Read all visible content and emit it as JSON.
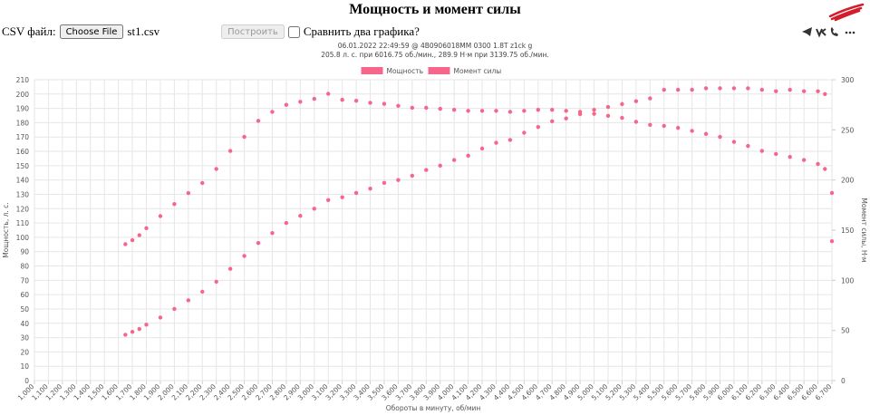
{
  "page": {
    "csv_label": "CSV файл:",
    "file_button": "Choose File",
    "file_name": "st1.csv",
    "build_button": "Построить",
    "compare_label": "Сравнить два графика?"
  },
  "chart_data": {
    "type": "scatter",
    "title": "Мощность и момент силы",
    "subtitle": [
      "06.01.2022 22:49:59 @ 4B0906018MM 0300 1.8T z1ck g",
      "205.8 л. с. при 6016.75 об./мин., 289.9 Н·м при 3139.75 об./мин."
    ],
    "x_label": "Обороты в минуту, об/мин",
    "y_label": "Мощность, л. с.",
    "y2_label": "Момент силы, Н·м",
    "legend": "top",
    "grid": true,
    "x": [
      1650,
      1700,
      1750,
      1800,
      1900,
      2000,
      2100,
      2200,
      2300,
      2400,
      2500,
      2600,
      2700,
      2800,
      2900,
      3000,
      3100,
      3200,
      3300,
      3400,
      3500,
      3600,
      3700,
      3800,
      3900,
      4000,
      4100,
      4200,
      4300,
      4400,
      4500,
      4600,
      4700,
      4800,
      4900,
      5000,
      5100,
      5200,
      5300,
      5400,
      5500,
      5600,
      5700,
      5800,
      5900,
      6000,
      6100,
      6200,
      6300,
      6400,
      6500,
      6600,
      6650,
      6700
    ],
    "series": [
      {
        "name": "Мощность",
        "color": "#f5668a",
        "axis": "y",
        "values": [
          32,
          34,
          36,
          39,
          44,
          50,
          56,
          62,
          69,
          78,
          87,
          96,
          103,
          110,
          115,
          120,
          126,
          128,
          131,
          134,
          138,
          140,
          143,
          147,
          150,
          154,
          157,
          162,
          166,
          168,
          173,
          177,
          181,
          183,
          186,
          189,
          191,
          193,
          195,
          197,
          203,
          203,
          203,
          204,
          204,
          204,
          204,
          203,
          202,
          203,
          202,
          202,
          200,
          131
        ]
      },
      {
        "name": "Момент силы",
        "color": "#f5668a",
        "axis": "y2",
        "values": [
          136,
          140,
          145,
          152,
          164,
          176,
          187,
          197,
          211,
          229,
          243,
          259,
          268,
          275,
          278,
          281,
          286,
          280,
          279,
          277,
          276,
          274,
          272,
          272,
          271,
          270,
          269,
          269,
          269,
          268,
          269,
          270,
          270,
          269,
          268,
          266,
          264,
          262,
          258,
          255,
          254,
          252,
          249,
          246,
          243,
          238,
          234,
          229,
          226,
          223,
          220,
          216,
          211,
          139
        ]
      }
    ],
    "xlim": [
      1000,
      6700
    ],
    "xticks": [
      {
        "value": 1000,
        "label": "1,000"
      },
      {
        "value": 1100,
        "label": "1,100"
      },
      {
        "value": 1200,
        "label": "1,200"
      },
      {
        "value": 1300,
        "label": "1,300"
      },
      {
        "value": 1400,
        "label": "1,400"
      },
      {
        "value": 1500,
        "label": "1,500"
      },
      {
        "value": 1600,
        "label": "1,600"
      },
      {
        "value": 1700,
        "label": "1,700"
      },
      {
        "value": 1800,
        "label": "1,800"
      },
      {
        "value": 1900,
        "label": "1,900"
      },
      {
        "value": 2000,
        "label": "2,000"
      },
      {
        "value": 2100,
        "label": "2,100"
      },
      {
        "value": 2200,
        "label": "2,200"
      },
      {
        "value": 2300,
        "label": "2,300"
      },
      {
        "value": 2400,
        "label": "2,400"
      },
      {
        "value": 2500,
        "label": "2,500"
      },
      {
        "value": 2600,
        "label": "2,600"
      },
      {
        "value": 2700,
        "label": "2,700"
      },
      {
        "value": 2800,
        "label": "2,800"
      },
      {
        "value": 2900,
        "label": "2,900"
      },
      {
        "value": 3000,
        "label": "3,000"
      },
      {
        "value": 3100,
        "label": "3,100"
      },
      {
        "value": 3200,
        "label": "3,200"
      },
      {
        "value": 3300,
        "label": "3,300"
      },
      {
        "value": 3400,
        "label": "3,400"
      },
      {
        "value": 3500,
        "label": "3,500"
      },
      {
        "value": 3600,
        "label": "3,600"
      },
      {
        "value": 3700,
        "label": "3,700"
      },
      {
        "value": 3800,
        "label": "3,800"
      },
      {
        "value": 3900,
        "label": "3,900"
      },
      {
        "value": 4000,
        "label": "4,000"
      },
      {
        "value": 4100,
        "label": "4,100"
      },
      {
        "value": 4200,
        "label": "4,200"
      },
      {
        "value": 4300,
        "label": "4,300"
      },
      {
        "value": 4400,
        "label": "4,400"
      },
      {
        "value": 4500,
        "label": "4,500"
      },
      {
        "value": 4600,
        "label": "4,600"
      },
      {
        "value": 4700,
        "label": "4,700"
      },
      {
        "value": 4800,
        "label": "4,800"
      },
      {
        "value": 4900,
        "label": "4,900"
      },
      {
        "value": 5000,
        "label": "5,000"
      },
      {
        "value": 5100,
        "label": "5,100"
      },
      {
        "value": 5200,
        "label": "5,200"
      },
      {
        "value": 5300,
        "label": "5,300"
      },
      {
        "value": 5400,
        "label": "5,400"
      },
      {
        "value": 5500,
        "label": "5,500"
      },
      {
        "value": 5600,
        "label": "5,600"
      },
      {
        "value": 5700,
        "label": "5,700"
      },
      {
        "value": 5800,
        "label": "5,800"
      },
      {
        "value": 5900,
        "label": "5,900"
      },
      {
        "value": 6000,
        "label": "6,000"
      },
      {
        "value": 6100,
        "label": "6,100"
      },
      {
        "value": 6200,
        "label": "6,200"
      },
      {
        "value": 6300,
        "label": "6,300"
      },
      {
        "value": 6400,
        "label": "6,400"
      },
      {
        "value": 6500,
        "label": "6,500"
      },
      {
        "value": 6600,
        "label": "6,600"
      },
      {
        "value": 6700,
        "label": "6,700"
      }
    ],
    "ylim": [
      0,
      210
    ],
    "yticks": [
      0,
      10,
      20,
      30,
      40,
      50,
      60,
      70,
      80,
      90,
      100,
      110,
      120,
      130,
      140,
      150,
      160,
      170,
      180,
      190,
      200,
      210
    ],
    "y2lim": [
      0,
      300
    ],
    "y2ticks": [
      0,
      50,
      100,
      150,
      200,
      250,
      300
    ]
  }
}
